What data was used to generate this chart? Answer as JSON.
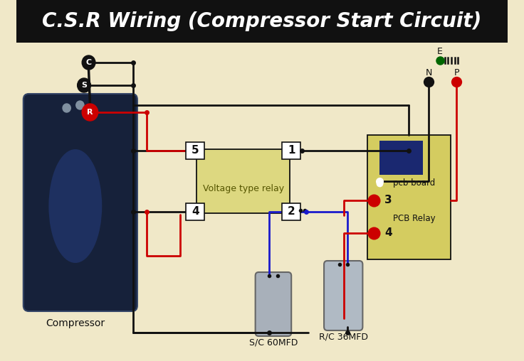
{
  "title": "C.S.R Wiring (Compressor Start Circuit)",
  "bg_color": "#f0e8c8",
  "title_bg": "#111111",
  "title_color": "#ffffff",
  "red": "#cc0000",
  "blue": "#1a1acc",
  "dark": "#111111",
  "green": "#006600",
  "relay_label": "Voltage type relay",
  "pcb_board_label": "pcb board",
  "pcb_relay_label": "PCB Relay",
  "sc_label": "S/C 60MFD",
  "rc_label": "R/C 36MFD",
  "compressor_label": "Compressor",
  "relay_color": "#ddd880",
  "pcb_color": "#d4cc60",
  "pcb_inner_color": "#1a2870"
}
